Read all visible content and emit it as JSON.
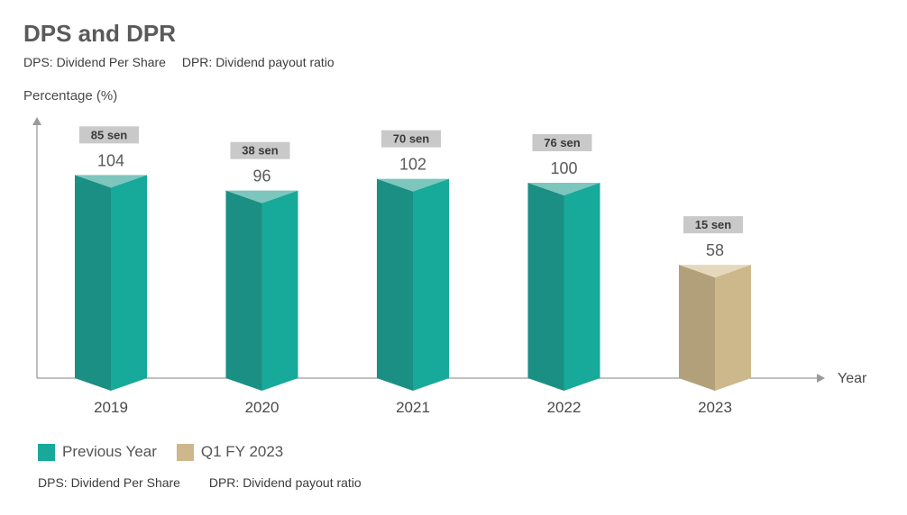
{
  "header": {
    "title": "DPS and DPR",
    "subtitle_dps": "DPS: Dividend Per Share",
    "subtitle_dpr": "DPR: Dividend payout ratio"
  },
  "legend": {
    "previous_label": "Previous Year",
    "q1_label": "Q1 FY 2023"
  },
  "footnote": {
    "dps": "DPS: Dividend Per Share",
    "dpr": "DPR: Dividend payout ratio"
  },
  "colors": {
    "teal_front": "#17a99a",
    "teal_side": "#1b8f83",
    "teal_top": "#7cc6bd",
    "tan_front": "#ccb88b",
    "tan_side": "#b2a07a",
    "tan_top": "#e4d9bd",
    "badge_bg": "#c9c9c9",
    "axis": "#9a9a9a"
  },
  "chart_data": {
    "type": "bar",
    "title": "DPS and DPR",
    "ylabel": "Percentage (%)",
    "xlabel": "Year",
    "categories": [
      "2019",
      "2020",
      "2021",
      "2022",
      "2023"
    ],
    "values": [
      104,
      96,
      102,
      100,
      58
    ],
    "dps_labels": [
      "85 sen",
      "38 sen",
      "70 sen",
      "76 sen",
      "15 sen"
    ],
    "series_group": [
      "Previous Year",
      "Previous Year",
      "Previous Year",
      "Previous Year",
      "Q1 FY 2023"
    ],
    "ylim": [
      0,
      120
    ],
    "grid": false,
    "legend_position": "bottom-left"
  }
}
